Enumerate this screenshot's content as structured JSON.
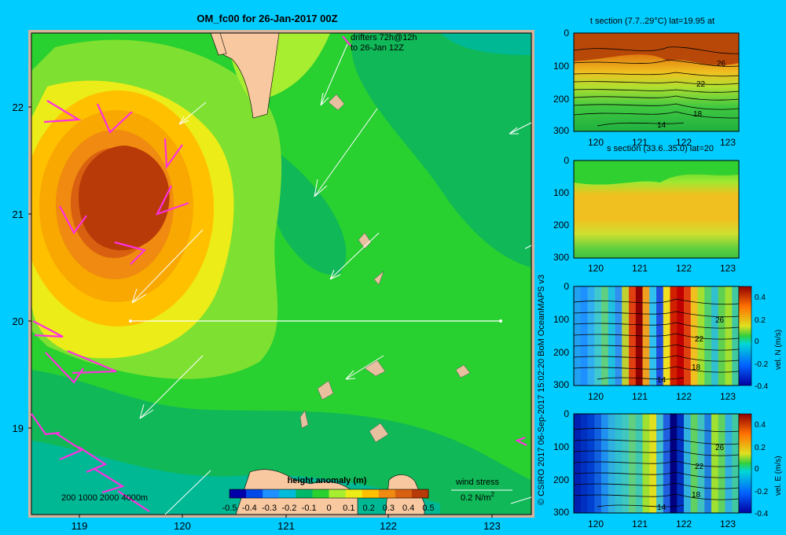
{
  "map": {
    "title": "OM_fc00 for 26-Jan-2017 00Z",
    "lon_ticks": [
      "119",
      "120",
      "121",
      "122",
      "123"
    ],
    "lat_ticks": [
      "22",
      "21",
      "20",
      "19"
    ],
    "drifters_line1": "drifters 72h@12h",
    "drifters_line2": "to 26-Jan 12Z",
    "depth_legend": "200  1000  2000  4000m",
    "wind_stress_label": "wind stress",
    "wind_stress_value": "0.2 N/m",
    "wind_stress_exp": "2",
    "colorbar": {
      "title": "height anomaly (m)",
      "labels": [
        "-0.5",
        "-0.4",
        "-0.3",
        "-0.2",
        "-0.1",
        "0",
        "0.1",
        "0.2",
        "0.3",
        "0.4",
        "0.5"
      ],
      "colors": [
        "#0000a8",
        "#0048e8",
        "#1e90ff",
        "#00bcd8",
        "#00b86a",
        "#28d030",
        "#a8ee30",
        "#ecec18",
        "#ffc000",
        "#f08a10",
        "#d86010",
        "#b83a08"
      ]
    }
  },
  "credit": "© CSIRO 2017   06-Sep-2017 15:02:20 BoM OceanMAPS v3",
  "sections": [
    {
      "title": "t section (7.7..29°C) lat=19.95 at",
      "y_ticks": [
        "0",
        "100",
        "200",
        "300"
      ],
      "x_ticks": [
        "120",
        "121",
        "122",
        "123"
      ],
      "contour_labels": [
        "26",
        "22",
        "18",
        "14"
      ]
    },
    {
      "title": "s section (33.6..35.0) lat=20",
      "y_ticks": [
        "0",
        "100",
        "200",
        "300"
      ],
      "x_ticks": [
        "120",
        "121",
        "122",
        "123"
      ]
    },
    {
      "title": "",
      "y_ticks": [
        "0",
        "100",
        "200",
        "300"
      ],
      "x_ticks": [
        "120",
        "121",
        "122",
        "123"
      ],
      "contour_labels": [
        "26",
        "22",
        "18",
        "14"
      ],
      "cbar_labels": [
        "0.4",
        "0.2",
        "0",
        "-0.2",
        "-0.4"
      ],
      "cbar_title": "vel. N (m/s)"
    },
    {
      "title": "",
      "y_ticks": [
        "0",
        "100",
        "200",
        "300"
      ],
      "x_ticks": [
        "120",
        "121",
        "122",
        "123"
      ],
      "contour_labels": [
        "26",
        "22",
        "18",
        "14"
      ],
      "cbar_labels": [
        "0.4",
        "0.2",
        "0",
        "-0.2",
        "-0.4"
      ],
      "cbar_title": "vel. E (m/s)"
    }
  ]
}
